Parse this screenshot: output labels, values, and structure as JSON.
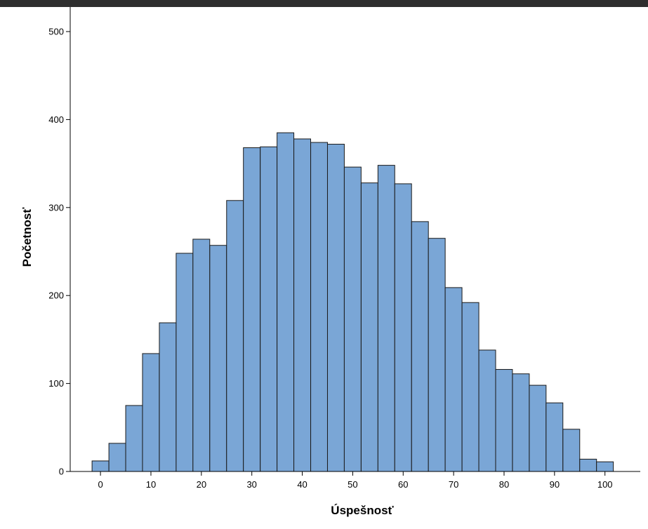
{
  "chart_data": {
    "type": "bar",
    "title": "",
    "xlabel": "Úspešnosť",
    "ylabel": "Početnosť",
    "bin_width": 3.33,
    "bins": [
      {
        "start": -1.67,
        "count": 12
      },
      {
        "start": 1.67,
        "count": 32
      },
      {
        "start": 5.0,
        "count": 75
      },
      {
        "start": 8.33,
        "count": 134
      },
      {
        "start": 11.67,
        "count": 169
      },
      {
        "start": 15.0,
        "count": 248
      },
      {
        "start": 18.33,
        "count": 264
      },
      {
        "start": 21.67,
        "count": 257
      },
      {
        "start": 25.0,
        "count": 308
      },
      {
        "start": 28.33,
        "count": 368
      },
      {
        "start": 31.67,
        "count": 369
      },
      {
        "start": 35.0,
        "count": 385
      },
      {
        "start": 38.33,
        "count": 378
      },
      {
        "start": 41.67,
        "count": 374
      },
      {
        "start": 45.0,
        "count": 372
      },
      {
        "start": 48.33,
        "count": 346
      },
      {
        "start": 51.67,
        "count": 328
      },
      {
        "start": 55.0,
        "count": 348
      },
      {
        "start": 58.33,
        "count": 327
      },
      {
        "start": 61.67,
        "count": 284
      },
      {
        "start": 65.0,
        "count": 265
      },
      {
        "start": 68.33,
        "count": 209
      },
      {
        "start": 71.67,
        "count": 192
      },
      {
        "start": 75.0,
        "count": 138
      },
      {
        "start": 78.33,
        "count": 116
      },
      {
        "start": 81.67,
        "count": 111
      },
      {
        "start": 85.0,
        "count": 98
      },
      {
        "start": 88.33,
        "count": 78
      },
      {
        "start": 91.67,
        "count": 48
      },
      {
        "start": 95.0,
        "count": 14
      },
      {
        "start": 98.33,
        "count": 11
      }
    ],
    "xlim": [
      -6,
      107
    ],
    "ylim": [
      0,
      500
    ],
    "x_ticks": [
      "0",
      "10",
      "20",
      "30",
      "40",
      "50",
      "60",
      "70",
      "80",
      "90",
      "100"
    ],
    "y_ticks": [
      "0",
      "100",
      "200",
      "300",
      "400",
      "500"
    ],
    "grid": false,
    "colors": {
      "bar_fill": "#7aa6d6",
      "bar_stroke": "#1a1a1a",
      "background": "#ffffff"
    }
  }
}
